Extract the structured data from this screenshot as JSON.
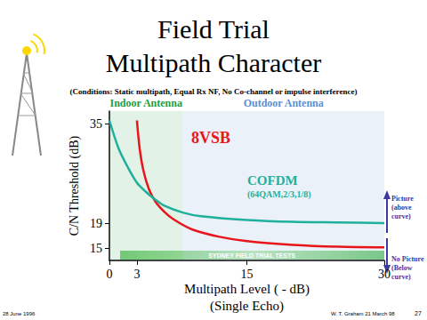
{
  "chart_data": {
    "type": "line",
    "title": "Field Trial\nMultipath Character",
    "subtitle": "(Conditions: Static multipath, Equal Rx NF, No Co-channel or impulse interference)",
    "xlabel": "Multipath Level ( - dB)\n(Single Echo)",
    "ylabel": "C/N Threshold (dB)",
    "xlim": [
      0,
      30
    ],
    "xticks": [
      0,
      3,
      15,
      30
    ],
    "ylim": [
      13,
      37
    ],
    "yticks": [
      15,
      19,
      35
    ],
    "grid": false,
    "series": [
      {
        "name": "8VSB",
        "color": "#e8161b",
        "x": [
          3,
          3.3,
          3.7,
          4.3,
          5,
          6,
          7,
          9,
          12,
          15,
          20,
          25,
          30
        ],
        "values": [
          35.5,
          31,
          27.5,
          24.5,
          22.5,
          20.8,
          19.6,
          18,
          16.8,
          16.1,
          15.5,
          15.2,
          15.1
        ]
      },
      {
        "name": "COFDM",
        "color": "#1fb09c",
        "x": [
          0,
          1,
          2,
          3,
          4,
          5,
          6,
          8,
          10,
          15,
          20,
          25,
          30
        ],
        "values": [
          35.5,
          31,
          28,
          25.5,
          24,
          22.8,
          21.8,
          20.7,
          20.1,
          19.5,
          19.2,
          19.1,
          19
        ]
      }
    ],
    "series_note": "(64QAM,2/3,1/8)",
    "regions": [
      {
        "label": "Indoor Antenna",
        "x": [
          0,
          8
        ],
        "color": "#1e9e3a"
      },
      {
        "label": "Outdoor Antenna",
        "x": [
          8,
          30
        ],
        "color": "#5b8fd0"
      }
    ],
    "above_label": "Picture\n(above\ncurve)",
    "below_label": "No Picture\n(Below\ncurve)",
    "banner": "SYDNEY FIELD TRIAL TESTS",
    "footer_left": "28 June 1996",
    "footer_middle": "W. T. Graham 21 March 98",
    "footer_right": "27"
  }
}
